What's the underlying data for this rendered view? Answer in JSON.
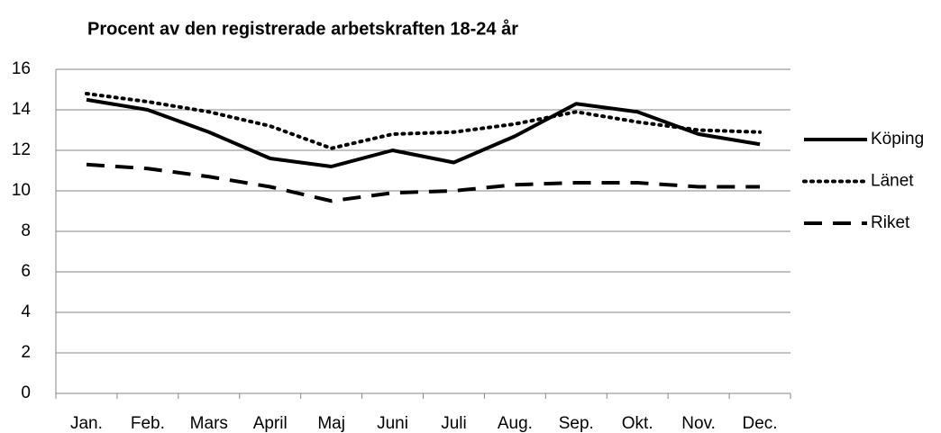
{
  "chart_data": {
    "type": "line",
    "title": "Procent av den registrerade arbetskraften 18-24 år",
    "categories": [
      "Jan.",
      "Feb.",
      "Mars",
      "April",
      "Maj",
      "Juni",
      "Juli",
      "Aug.",
      "Sep.",
      "Okt.",
      "Nov.",
      "Dec."
    ],
    "series": [
      {
        "name": "Köping",
        "color": "#000000",
        "dash": "solid",
        "values": [
          14.5,
          14.0,
          12.9,
          11.6,
          11.2,
          12.0,
          11.4,
          12.7,
          14.3,
          13.9,
          12.8,
          12.3
        ]
      },
      {
        "name": "Länet",
        "color": "#000000",
        "dash": "dotted",
        "values": [
          14.8,
          14.4,
          13.9,
          13.2,
          12.1,
          12.8,
          12.9,
          13.3,
          13.9,
          13.4,
          13.0,
          12.9
        ]
      },
      {
        "name": "Riket",
        "color": "#000000",
        "dash": "dashed",
        "values": [
          11.3,
          11.1,
          10.7,
          10.2,
          9.5,
          9.9,
          10.0,
          10.3,
          10.4,
          10.4,
          10.2,
          10.2
        ]
      }
    ],
    "ylim": [
      0,
      16
    ],
    "yticks": [
      0,
      2,
      4,
      6,
      8,
      10,
      12,
      14,
      16
    ],
    "grid": true,
    "legend": "right"
  }
}
